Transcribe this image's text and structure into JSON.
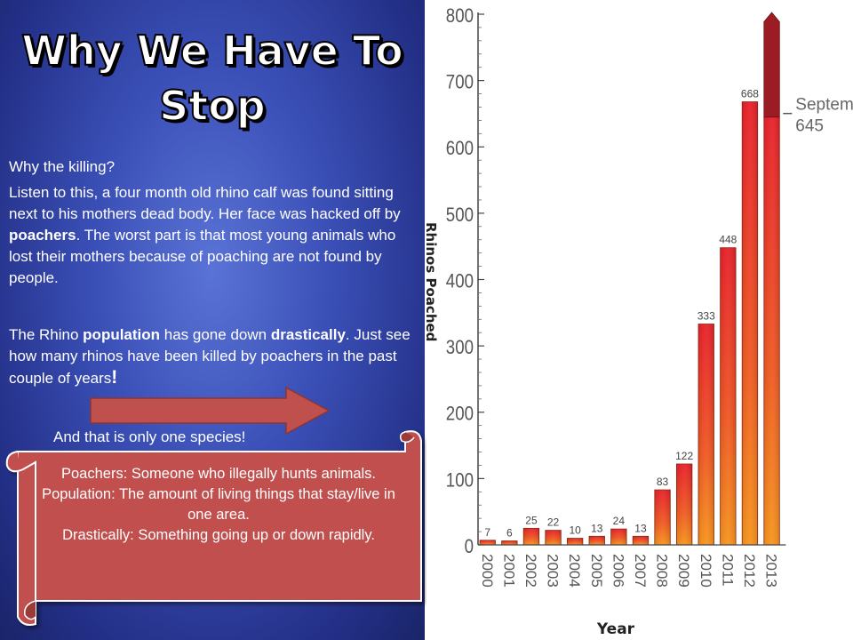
{
  "slide": {
    "title_line1": "Why We Have To",
    "title_line2": "Stop",
    "question": "Why the killing?",
    "p1": {
      "a": "Listen to this, a four month old rhino calf was found sitting next to his mothers dead body. Her face was hacked off by ",
      "b": "poachers",
      "c": ". The worst part is that most young animals who lost their mothers because of poaching are not found by people."
    },
    "p2": {
      "a": " The Rhino ",
      "b": "population",
      "c": " has gone down ",
      "d": "drastically",
      "e": ". Just see how many rhinos have been killed by poachers in the past couple of years",
      "f": "!"
    },
    "p3": "And that is only one species!",
    "definitions": [
      "Poachers: Someone who illegally hunts animals.",
      "Population:  The amount of living things that stay/live  in one area.",
      "Drastically: Something going up or down rapidly."
    ],
    "colors": {
      "background": "#3a4fb6",
      "scroll": "#c0504d",
      "arrow": "#c0504d",
      "bar": "#f08020"
    }
  },
  "chart_data": {
    "type": "bar",
    "categories": [
      "2000",
      "2001",
      "2002",
      "2003",
      "2004",
      "2005",
      "2006",
      "2007",
      "2008",
      "2009",
      "2010",
      "2011",
      "2012",
      "2013"
    ],
    "values": [
      7,
      6,
      25,
      22,
      10,
      13,
      24,
      13,
      83,
      122,
      333,
      448,
      668,
      645
    ],
    "labels": [
      "7",
      "6",
      "25",
      "22",
      "10",
      "13",
      "24",
      "13",
      "83",
      "122",
      "333",
      "448",
      "668",
      ""
    ],
    "ylabel": "Rhinos Poached",
    "xlabel": "Year",
    "ylim": [
      0,
      800
    ],
    "yticks": [
      "0",
      "100",
      "200",
      "300",
      "400",
      "500",
      "600",
      "700",
      "800"
    ],
    "annotation": {
      "line1": "September",
      "line2": "645"
    },
    "grid": false
  }
}
